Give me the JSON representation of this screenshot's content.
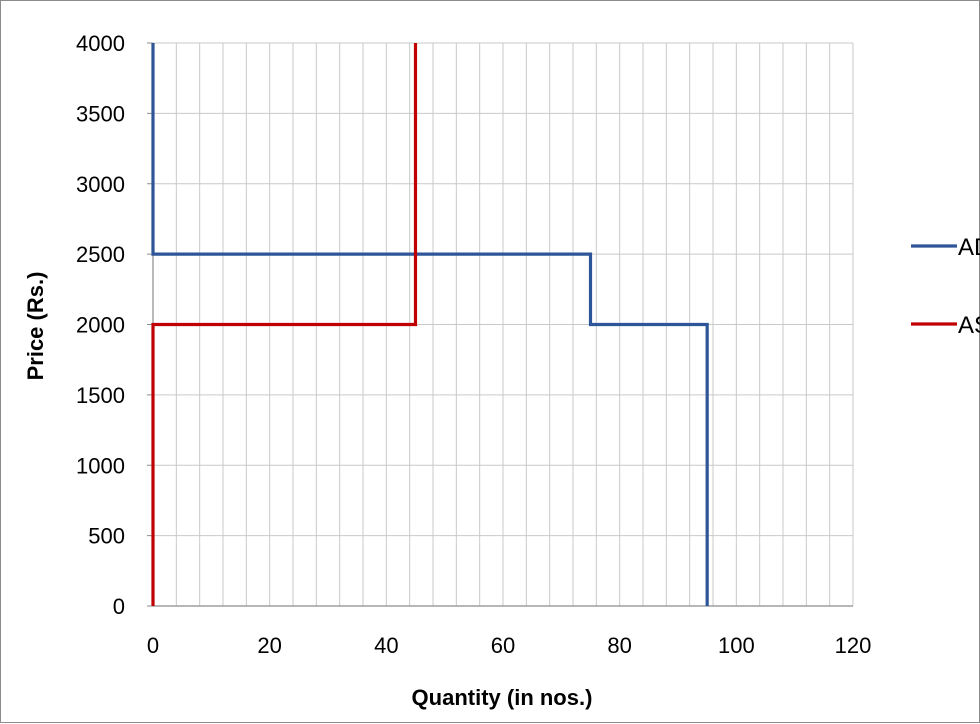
{
  "chart_data": {
    "type": "line",
    "title": "",
    "xlabel": "Quantity (in nos.)",
    "ylabel": "Price (Rs.)",
    "xlim": [
      0,
      120
    ],
    "ylim": [
      0,
      4000
    ],
    "x_ticks": [
      0,
      20,
      40,
      60,
      80,
      100,
      120
    ],
    "y_ticks": [
      0,
      500,
      1000,
      1500,
      2000,
      2500,
      3000,
      3500,
      4000
    ],
    "x_minor_step": 4,
    "grid": true,
    "legend_position": "right",
    "series": [
      {
        "name": "AD",
        "color": "#2e5597",
        "points": [
          [
            0,
            4000
          ],
          [
            0,
            2500
          ],
          [
            75,
            2500
          ],
          [
            75,
            2000
          ],
          [
            95,
            2000
          ],
          [
            95,
            0
          ]
        ]
      },
      {
        "name": "AS",
        "color": "#c00000",
        "points": [
          [
            0,
            0
          ],
          [
            0,
            2000
          ],
          [
            45,
            2000
          ],
          [
            45,
            4000
          ]
        ]
      }
    ]
  }
}
